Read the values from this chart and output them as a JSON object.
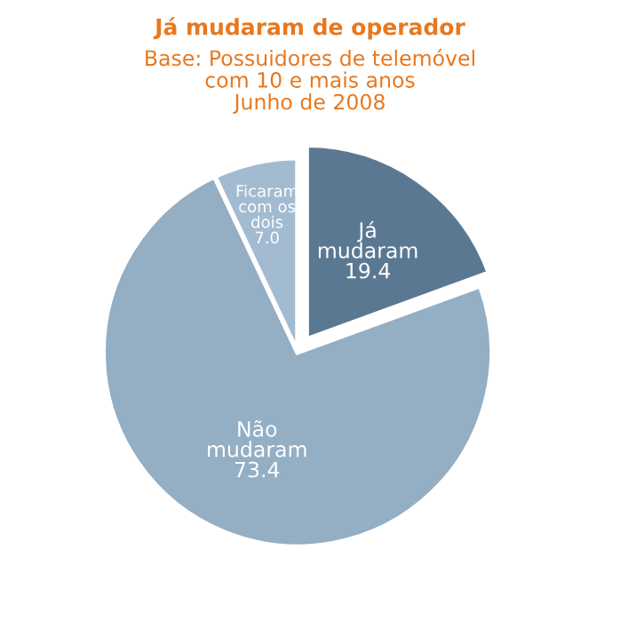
{
  "chart_data": {
    "type": "pie",
    "title": "Já mudaram de operador",
    "subtitle": "Base: Possuidores de telemóvel\ncom 10 e mais anos\nJunho de 2008",
    "categories": [
      "Já\nmudaram",
      "Não\nmudaram",
      "Ficaram\ncom os\ndois"
    ],
    "values": [
      19.4,
      73.4,
      7.0
    ],
    "colors": [
      "#5b7893",
      "#94aec4",
      "#a3bbd0"
    ],
    "value_labels": [
      "19.4",
      "73.4",
      "7.0"
    ],
    "legend": false
  }
}
